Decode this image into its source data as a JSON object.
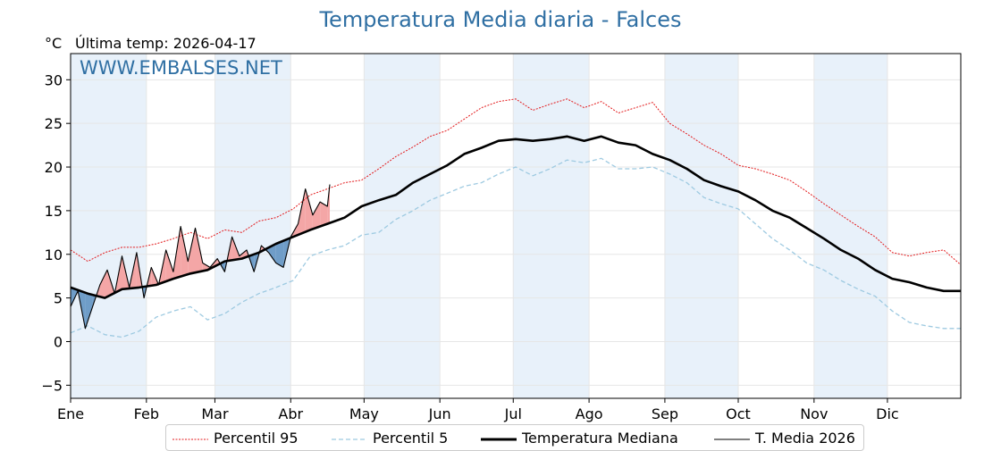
{
  "header": {
    "title": "Temperatura Media diaria - Falces",
    "unit": "°C",
    "last_temp": "Última temp: 2026-04-17",
    "watermark": "WWW.EMBALSES.NET"
  },
  "legend": {
    "p95": "Percentil 95",
    "p5": "Percentil 5",
    "median": "Temperatura Mediana",
    "current": "T. Media 2026"
  },
  "colors": {
    "p95": "#e31a1c",
    "p5": "#9ecae1",
    "median": "#000000",
    "current": "#000000",
    "above": "#f4a6a6",
    "below": "#6f9dc8",
    "band": "#e8f1fa",
    "title": "#2f6fa3"
  },
  "chart_data": {
    "type": "line",
    "title": "Temperatura Media diaria - Falces",
    "ylabel": "°C",
    "ylim": [
      -6.5,
      33
    ],
    "xlim": [
      1,
      365
    ],
    "yticks": [
      -5,
      0,
      5,
      10,
      15,
      20,
      25,
      30
    ],
    "month_labels": [
      "Ene",
      "Feb",
      "Mar",
      "Abr",
      "May",
      "Jun",
      "Jul",
      "Ago",
      "Sep",
      "Oct",
      "Nov",
      "Dic"
    ],
    "month_start_days": [
      1,
      32,
      60,
      91,
      121,
      152,
      182,
      213,
      244,
      274,
      305,
      335
    ],
    "grid": true,
    "legend_position": "bottom-center",
    "series": [
      {
        "name": "Percentil 95",
        "x": [
          1,
          8,
          15,
          22,
          29,
          36,
          43,
          50,
          57,
          64,
          71,
          78,
          85,
          92,
          99,
          106,
          113,
          120,
          127,
          134,
          141,
          148,
          155,
          162,
          169,
          176,
          183,
          190,
          197,
          204,
          211,
          218,
          225,
          232,
          239,
          246,
          253,
          260,
          267,
          274,
          281,
          288,
          295,
          302,
          309,
          316,
          323,
          330,
          337,
          344,
          351,
          358,
          365
        ],
        "values": [
          10.5,
          9.2,
          10.2,
          10.8,
          10.8,
          11.2,
          11.8,
          12.5,
          11.8,
          12.8,
          12.5,
          13.8,
          14.2,
          15.2,
          16.8,
          17.5,
          18.2,
          18.5,
          19.8,
          21.2,
          22.3,
          23.5,
          24.2,
          25.5,
          26.8,
          27.5,
          27.8,
          26.5,
          27.2,
          27.8,
          26.8,
          27.5,
          26.2,
          26.8,
          27.4,
          25.0,
          23.8,
          22.5,
          21.5,
          20.2,
          19.8,
          19.2,
          18.5,
          17.2,
          15.8,
          14.5,
          13.2,
          12.0,
          10.2,
          9.8,
          10.2,
          10.5,
          8.8
        ]
      },
      {
        "name": "Percentil 5",
        "x": [
          1,
          8,
          15,
          22,
          29,
          36,
          43,
          50,
          57,
          64,
          71,
          78,
          85,
          92,
          99,
          106,
          113,
          120,
          127,
          134,
          141,
          148,
          155,
          162,
          169,
          176,
          183,
          190,
          197,
          204,
          211,
          218,
          225,
          232,
          239,
          246,
          253,
          260,
          267,
          274,
          281,
          288,
          295,
          302,
          309,
          316,
          323,
          330,
          337,
          344,
          351,
          358,
          365
        ],
        "values": [
          1.0,
          1.8,
          0.8,
          0.5,
          1.2,
          2.8,
          3.5,
          4.0,
          2.5,
          3.2,
          4.5,
          5.5,
          6.2,
          7.0,
          9.8,
          10.5,
          11.0,
          12.2,
          12.5,
          14.0,
          15.0,
          16.2,
          17.0,
          17.8,
          18.2,
          19.2,
          20.0,
          19.0,
          19.8,
          20.8,
          20.5,
          21.0,
          19.8,
          19.8,
          20.0,
          19.2,
          18.2,
          16.5,
          15.8,
          15.2,
          13.5,
          11.8,
          10.5,
          9.0,
          8.2,
          7.0,
          6.0,
          5.2,
          3.5,
          2.2,
          1.8,
          1.5,
          1.5
        ]
      },
      {
        "name": "Temperatura Mediana",
        "x": [
          1,
          8,
          15,
          22,
          29,
          36,
          43,
          50,
          57,
          64,
          71,
          78,
          85,
          92,
          99,
          106,
          113,
          120,
          127,
          134,
          141,
          148,
          155,
          162,
          169,
          176,
          183,
          190,
          197,
          204,
          211,
          218,
          225,
          232,
          239,
          246,
          253,
          260,
          267,
          274,
          281,
          288,
          295,
          302,
          309,
          316,
          323,
          330,
          337,
          344,
          351,
          358,
          365
        ],
        "values": [
          6.2,
          5.5,
          5.0,
          6.0,
          6.2,
          6.5,
          7.2,
          7.8,
          8.2,
          9.2,
          9.5,
          10.2,
          11.2,
          12.0,
          12.8,
          13.5,
          14.2,
          15.5,
          16.2,
          16.8,
          18.2,
          19.2,
          20.2,
          21.5,
          22.2,
          23.0,
          23.2,
          23.0,
          23.2,
          23.5,
          23.0,
          23.5,
          22.8,
          22.5,
          21.5,
          20.8,
          19.8,
          18.5,
          17.8,
          17.2,
          16.2,
          15.0,
          14.2,
          13.0,
          11.8,
          10.5,
          9.5,
          8.2,
          7.2,
          6.8,
          6.2,
          5.8,
          5.8
        ]
      },
      {
        "name": "T. Media 2026",
        "x": [
          1,
          4,
          7,
          10,
          13,
          16,
          19,
          22,
          25,
          28,
          31,
          34,
          37,
          40,
          43,
          46,
          49,
          52,
          55,
          58,
          61,
          64,
          67,
          70,
          73,
          76,
          79,
          82,
          85,
          88,
          91,
          94,
          97,
          100,
          103,
          106,
          107
        ],
        "values": [
          4.0,
          5.8,
          1.5,
          4.0,
          6.5,
          8.2,
          5.5,
          9.8,
          6.2,
          10.2,
          5.0,
          8.5,
          6.5,
          10.5,
          8.0,
          13.2,
          9.2,
          13.0,
          9.0,
          8.5,
          9.5,
          8.0,
          12.0,
          9.8,
          10.5,
          8.0,
          11.0,
          10.2,
          9.0,
          8.5,
          12.0,
          13.5,
          17.5,
          14.5,
          16.0,
          15.5,
          18.0
        ]
      }
    ]
  }
}
